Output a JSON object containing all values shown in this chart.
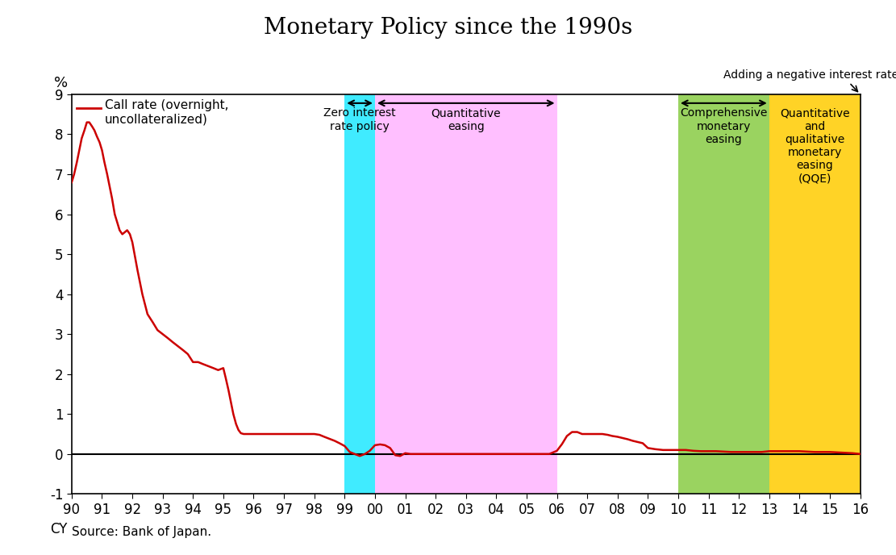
{
  "title": "Monetary Policy since the 1990s",
  "ylabel": "%",
  "source": "Source: Bank of Japan.",
  "annotation_top": "Adding a negative interest rate dimension",
  "xlim": [
    1990,
    2016
  ],
  "ylim": [
    -1,
    9
  ],
  "yticks": [
    -1,
    0,
    1,
    2,
    3,
    4,
    5,
    6,
    7,
    8,
    9
  ],
  "xticks": [
    1990,
    1991,
    1992,
    1993,
    1994,
    1995,
    1996,
    1997,
    1998,
    1999,
    2000,
    2001,
    2002,
    2003,
    2004,
    2005,
    2006,
    2007,
    2008,
    2009,
    2010,
    2011,
    2012,
    2013,
    2014,
    2015,
    2016
  ],
  "xtick_labels": [
    "90",
    "91",
    "92",
    "93",
    "94",
    "95",
    "96",
    "97",
    "98",
    "99",
    "00",
    "01",
    "02",
    "03",
    "04",
    "05",
    "06",
    "07",
    "08",
    "09",
    "10",
    "11",
    "12",
    "13",
    "14",
    "15",
    "16"
  ],
  "cx_label": "CY",
  "line_color": "#cc0000",
  "line_label": "Call rate (overnight,\nuncollateralized)",
  "shading_regions": [
    {
      "xmin": 1999,
      "xmax": 2000,
      "color": "#00e5ff",
      "alpha": 0.75,
      "label": "Zero interest\nrate policy"
    },
    {
      "xmin": 2000,
      "xmax": 2006,
      "color": "#ffaaff",
      "alpha": 0.75,
      "label": "Quantitative\neasing"
    },
    {
      "xmin": 2010,
      "xmax": 2013,
      "color": "#88cc44",
      "alpha": 0.85,
      "label": "Comprehensive\nmonetary\neasing"
    },
    {
      "xmin": 2013,
      "xmax": 2016,
      "color": "#ffcc00",
      "alpha": 0.85,
      "label": "Quantitative\nand\nqualitative\nmonetary\neasing\n(QQE)"
    }
  ],
  "x_data": [
    1990.0,
    1990.08,
    1990.17,
    1990.25,
    1990.33,
    1990.42,
    1990.5,
    1990.58,
    1990.67,
    1990.75,
    1990.83,
    1990.92,
    1991.0,
    1991.08,
    1991.17,
    1991.25,
    1991.33,
    1991.42,
    1991.5,
    1991.58,
    1991.67,
    1991.75,
    1991.83,
    1991.92,
    1992.0,
    1992.17,
    1992.33,
    1992.5,
    1992.67,
    1992.83,
    1993.0,
    1993.17,
    1993.33,
    1993.5,
    1993.67,
    1993.83,
    1994.0,
    1994.17,
    1994.33,
    1994.5,
    1994.67,
    1994.83,
    1995.0,
    1995.08,
    1995.17,
    1995.25,
    1995.33,
    1995.42,
    1995.5,
    1995.58,
    1995.67,
    1995.75,
    1995.83,
    1995.92,
    1996.0,
    1996.17,
    1996.33,
    1996.5,
    1996.67,
    1996.83,
    1997.0,
    1997.17,
    1997.33,
    1997.5,
    1997.67,
    1997.83,
    1998.0,
    1998.17,
    1998.33,
    1998.5,
    1998.67,
    1998.83,
    1999.0,
    1999.17,
    1999.33,
    1999.5,
    1999.67,
    1999.83,
    2000.0,
    2000.17,
    2000.33,
    2000.5,
    2000.67,
    2000.83,
    2001.0,
    2001.17,
    2001.33,
    2001.5,
    2001.67,
    2001.83,
    2002.0,
    2002.25,
    2002.5,
    2002.75,
    2003.0,
    2003.25,
    2003.5,
    2003.75,
    2004.0,
    2004.25,
    2004.5,
    2004.75,
    2005.0,
    2005.25,
    2005.5,
    2005.75,
    2006.0,
    2006.17,
    2006.33,
    2006.5,
    2006.67,
    2006.83,
    2007.0,
    2007.17,
    2007.33,
    2007.5,
    2007.67,
    2007.83,
    2008.0,
    2008.17,
    2008.33,
    2008.5,
    2008.67,
    2008.83,
    2009.0,
    2009.25,
    2009.5,
    2009.75,
    2010.0,
    2010.25,
    2010.5,
    2010.75,
    2011.0,
    2011.25,
    2011.5,
    2011.75,
    2012.0,
    2012.25,
    2012.5,
    2012.75,
    2013.0,
    2013.25,
    2013.5,
    2013.75,
    2014.0,
    2014.25,
    2014.5,
    2014.75,
    2015.0,
    2015.25,
    2015.5,
    2015.75,
    2016.0
  ],
  "y_data": [
    6.8,
    7.0,
    7.3,
    7.6,
    7.9,
    8.1,
    8.3,
    8.3,
    8.2,
    8.1,
    7.95,
    7.8,
    7.6,
    7.3,
    7.0,
    6.7,
    6.4,
    6.0,
    5.8,
    5.6,
    5.5,
    5.55,
    5.6,
    5.5,
    5.3,
    4.6,
    4.0,
    3.5,
    3.3,
    3.1,
    3.0,
    2.9,
    2.8,
    2.7,
    2.6,
    2.5,
    2.3,
    2.3,
    2.25,
    2.2,
    2.15,
    2.1,
    2.15,
    1.9,
    1.6,
    1.3,
    1.0,
    0.75,
    0.6,
    0.52,
    0.5,
    0.5,
    0.5,
    0.5,
    0.5,
    0.5,
    0.5,
    0.5,
    0.5,
    0.5,
    0.5,
    0.5,
    0.5,
    0.5,
    0.5,
    0.5,
    0.5,
    0.48,
    0.43,
    0.38,
    0.33,
    0.27,
    0.2,
    0.05,
    0.0,
    -0.05,
    0.0,
    0.08,
    0.22,
    0.24,
    0.22,
    0.15,
    -0.03,
    -0.05,
    0.02,
    0.0,
    0.0,
    0.0,
    0.0,
    0.0,
    0.0,
    0.0,
    0.0,
    0.0,
    0.0,
    0.0,
    0.0,
    0.0,
    0.0,
    0.0,
    0.0,
    0.0,
    0.0,
    0.0,
    0.0,
    0.0,
    0.08,
    0.25,
    0.45,
    0.55,
    0.55,
    0.5,
    0.5,
    0.5,
    0.5,
    0.5,
    0.48,
    0.45,
    0.43,
    0.4,
    0.37,
    0.33,
    0.3,
    0.27,
    0.15,
    0.12,
    0.1,
    0.1,
    0.1,
    0.1,
    0.08,
    0.07,
    0.07,
    0.07,
    0.06,
    0.05,
    0.05,
    0.05,
    0.05,
    0.05,
    0.07,
    0.07,
    0.07,
    0.07,
    0.07,
    0.06,
    0.05,
    0.05,
    0.05,
    0.04,
    0.03,
    0.02,
    0.0
  ]
}
